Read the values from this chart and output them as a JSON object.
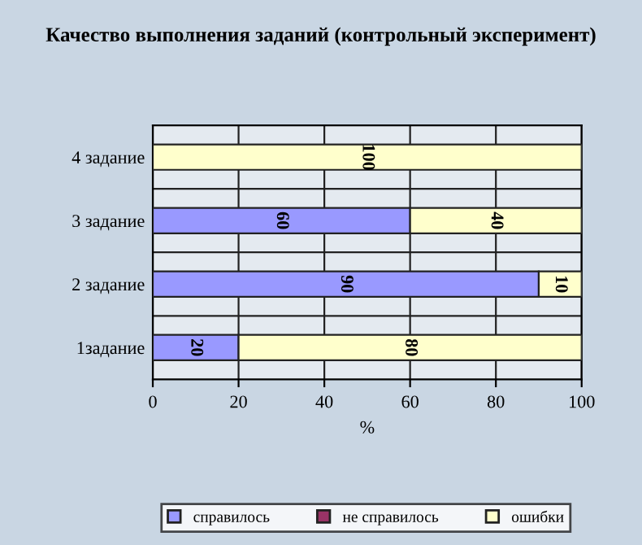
{
  "chart_data": {
    "type": "bar",
    "orientation": "horizontal",
    "stacked": true,
    "title": "Качество выполнения заданий (контрольный эксперимент)",
    "xlabel": "%",
    "categories": [
      "4 задание",
      "3 задание",
      "2 задание",
      "1задание"
    ],
    "series": [
      {
        "name": "справилось",
        "color": "#9999ff",
        "values": [
          0,
          60,
          90,
          20
        ],
        "value_labels": [
          null,
          "60",
          "90",
          "20"
        ]
      },
      {
        "name": "не справилось",
        "color": "#993366",
        "values": [
          0,
          0,
          0,
          0
        ],
        "value_labels": [
          null,
          null,
          null,
          null
        ]
      },
      {
        "name": "ошибки",
        "color": "#ffffcc",
        "values": [
          100,
          40,
          10,
          80
        ],
        "value_labels": [
          "100",
          "40",
          "10",
          "80"
        ]
      }
    ],
    "xlim": [
      0,
      100
    ],
    "xticks": [
      0,
      20,
      40,
      60,
      80,
      100
    ],
    "grid": true,
    "legend": "bottom"
  }
}
